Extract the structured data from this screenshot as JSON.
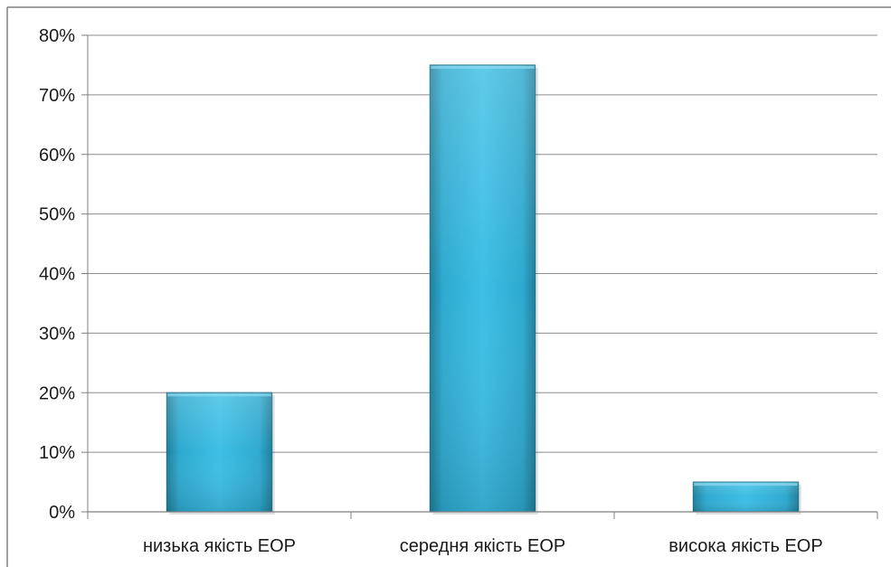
{
  "chart_data": {
    "type": "bar",
    "categories": [
      "низька якість ЕОР",
      "середня якість ЕОР",
      "висока якість ЕОР"
    ],
    "values": [
      20,
      75,
      5
    ],
    "unit": "%",
    "ylim": [
      0,
      80
    ],
    "yticks": [
      0,
      10,
      20,
      30,
      40,
      50,
      60,
      70,
      80
    ],
    "ytick_labels": [
      "0%",
      "10%",
      "20%",
      "30%",
      "40%",
      "50%",
      "60%",
      "70%",
      "80%"
    ],
    "grid": true,
    "legend": "none",
    "colors": {
      "bar_light": "#46c4e8",
      "bar_mid": "#2aa3c8",
      "bar_dark": "#1d6f86",
      "grid": "#8c8c8c",
      "axis": "#7f7f7f",
      "border": "#808080"
    }
  }
}
